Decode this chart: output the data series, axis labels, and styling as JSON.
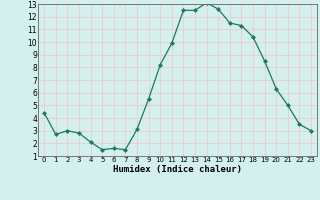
{
  "x": [
    0,
    1,
    2,
    3,
    4,
    5,
    6,
    7,
    8,
    9,
    10,
    11,
    12,
    13,
    14,
    15,
    16,
    17,
    18,
    19,
    20,
    21,
    22,
    23
  ],
  "y": [
    4.4,
    2.7,
    3.0,
    2.8,
    2.1,
    1.5,
    1.6,
    1.5,
    3.1,
    5.5,
    8.2,
    9.9,
    12.5,
    12.5,
    13.1,
    12.6,
    11.5,
    11.3,
    10.4,
    8.5,
    6.3,
    5.0,
    3.5,
    3.0
  ],
  "line_color": "#1a7a5e",
  "marker": "D",
  "marker_size": 2.0,
  "bg_color": "#d4f0ee",
  "grid_color": "#f0c8c8",
  "xlabel": "Humidex (Indice chaleur)",
  "xlim": [
    -0.5,
    23.5
  ],
  "ylim": [
    1,
    13
  ],
  "yticks": [
    1,
    2,
    3,
    4,
    5,
    6,
    7,
    8,
    9,
    10,
    11,
    12,
    13
  ],
  "xticks": [
    0,
    1,
    2,
    3,
    4,
    5,
    6,
    7,
    8,
    9,
    10,
    11,
    12,
    13,
    14,
    15,
    16,
    17,
    18,
    19,
    20,
    21,
    22,
    23
  ]
}
